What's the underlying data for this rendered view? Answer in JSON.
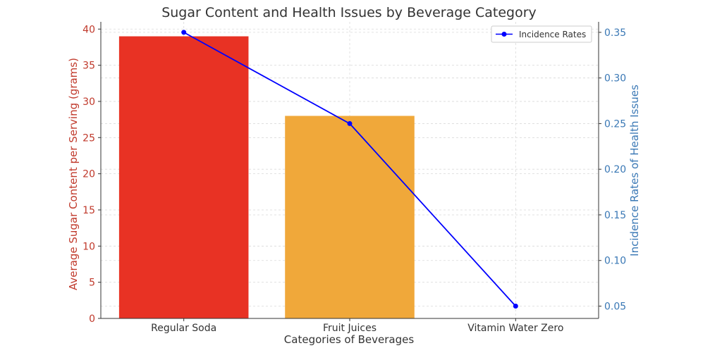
{
  "chart_data": {
    "type": "bar",
    "title": "Sugar Content and Health Issues by Beverage Category",
    "xlabel": "Categories of Beverages",
    "ylabel": "Average Sugar Content per Serving (grams)",
    "y2label": "Incidence Rates of Health Issues",
    "categories": [
      "Regular Soda",
      "Fruit Juices",
      "Vitamin Water Zero"
    ],
    "bar_series": {
      "values": [
        39,
        28,
        0
      ],
      "colors": [
        "#e83224",
        "#f0a83a",
        "#7fc34a"
      ]
    },
    "line_series": {
      "name": "Incidence Rates",
      "values": [
        0.35,
        0.25,
        0.05
      ],
      "color": "#0000ff"
    },
    "ylim": [
      0,
      41
    ],
    "yticks": [
      0,
      5,
      10,
      15,
      20,
      25,
      30,
      35,
      40
    ],
    "y2lim": [
      0.0365,
      0.3615
    ],
    "y2ticks": [
      0.05,
      0.1,
      0.15,
      0.2,
      0.25,
      0.3,
      0.35
    ],
    "y2tick_labels": [
      "0.05",
      "0.10",
      "0.15",
      "0.20",
      "0.25",
      "0.30",
      "0.35"
    ],
    "left_axis_color": "#c0392b",
    "right_axis_color": "#3a78b5",
    "grid": true,
    "legend_position": "top-right"
  }
}
